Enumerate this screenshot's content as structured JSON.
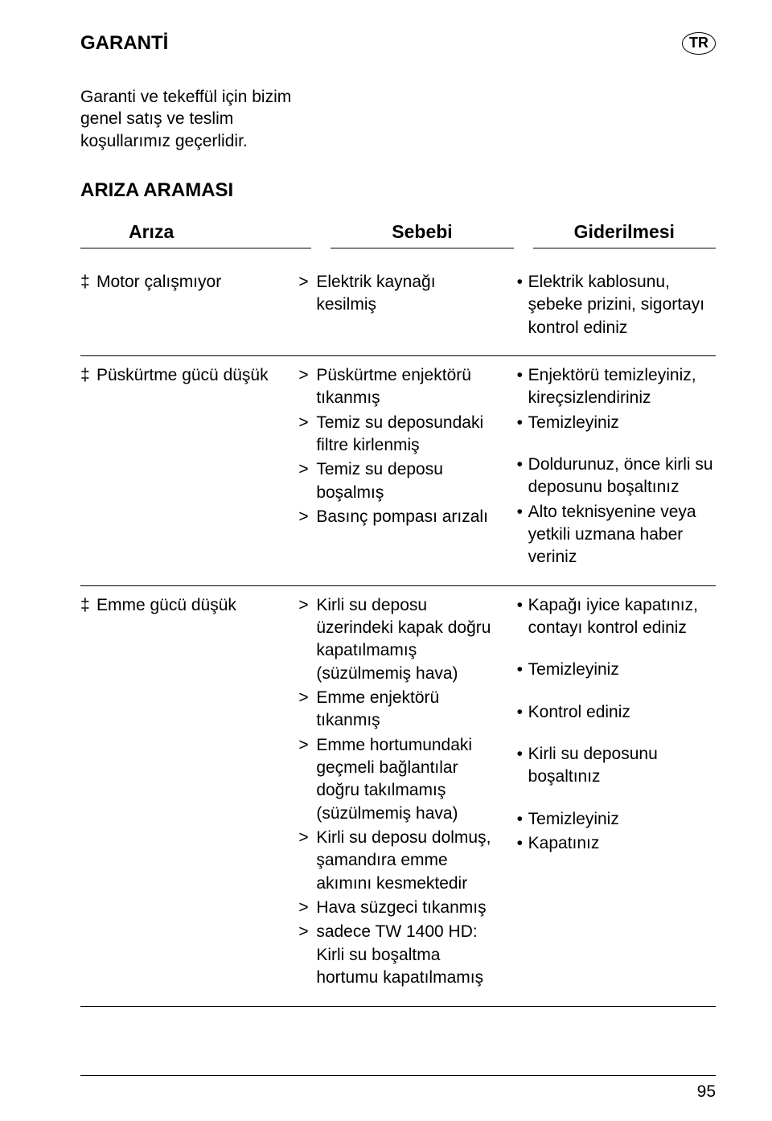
{
  "lang_badge": "TR",
  "title": "GARANTİ",
  "intro": "Garanti ve tekeffül için bizim genel satış ve teslim koşullarımız geçerlidir.",
  "section_title": "ARIZA ARAMASI",
  "headers": {
    "fault": "Arıza",
    "cause": "Sebebi",
    "remedy": "Giderilmesi"
  },
  "page_number": "95",
  "rows": [
    {
      "fault": "Motor çalışmıyor",
      "causes": [
        "Elektrik kaynağı kesilmiş"
      ],
      "remedies": [
        "Elektrik kablosunu, şebeke prizini, sigortayı kontrol ediniz"
      ]
    },
    {
      "fault": "Püskürtme gücü düşük",
      "causes": [
        "Püskürtme enjektörü tıkanmış",
        "Temiz su deposundaki filtre kirlenmiş",
        "Temiz su deposu boşalmış",
        "Basınç pompası arızalı"
      ],
      "remedies": [
        "Enjektörü temizleyiniz, kireçsizlendiriniz",
        "Temizleyiniz",
        "Doldurunuz, önce kirli su deposunu boşaltınız",
        "Alto teknisyenine veya yetkili uzmana haber veriniz"
      ],
      "remedy_gap_before": [
        2
      ]
    },
    {
      "fault": "Emme gücü düşük",
      "causes": [
        "Kirli su deposu üzerindeki kapak doğru kapatılmamış (süzülmemiş hava)",
        "Emme enjektörü tıkanmış",
        "Emme hortumundaki geçmeli bağlantılar doğru takılmamış (süzülmemiş hava)",
        "Kirli su deposu dolmuş, şamandıra emme akımını kesmektedir",
        "Hava süzgeci tıkanmış",
        "sadece TW 1400 HD: Kirli su boşaltma hortumu kapatılmamış"
      ],
      "remedies": [
        "Kapağı iyice kapatınız, contayı kontrol ediniz",
        "Temizleyiniz",
        "Kontrol ediniz",
        "Kirli su deposunu boşaltınız",
        "Temizleyiniz",
        "Kapatınız"
      ],
      "remedy_gap_before": [
        1,
        2,
        3,
        4
      ]
    }
  ]
}
